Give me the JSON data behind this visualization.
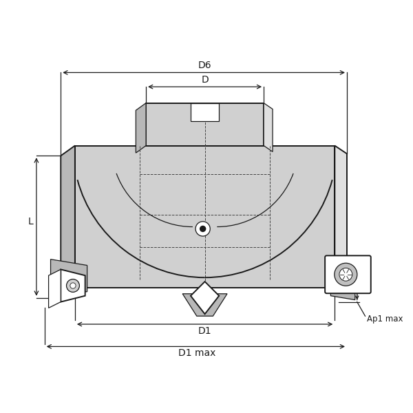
{
  "bg_color": "#ffffff",
  "line_color": "#1a1a1a",
  "fill_color": "#d0d0d0",
  "fill_dark": "#b8b8b8",
  "fill_light": "#e0e0e0",
  "dash_color": "#444444",
  "labels": {
    "D6": "D6",
    "D": "D",
    "L": "L",
    "D1": "D1",
    "D1max": "D1 max",
    "Ap1max": "Ap1 max"
  },
  "xlim": [
    0,
    10
  ],
  "ylim": [
    0,
    10
  ]
}
